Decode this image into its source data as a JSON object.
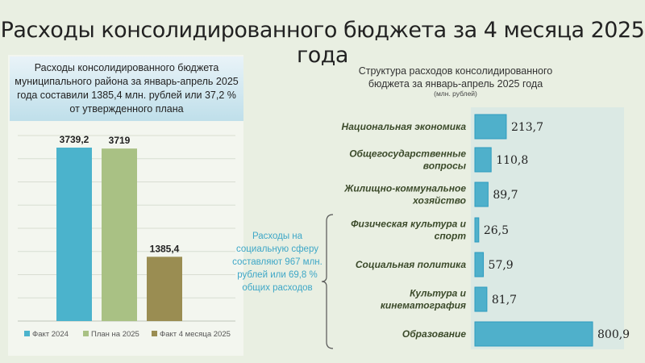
{
  "title": "Расходы консолидированного бюджета за 4 месяца 2025 года",
  "summary": "Расходы консолидированного бюджета муниципального района за январь-апрель 2025 года составили 1385,4 млн. рублей или 37,2 % от утвержденного плана",
  "side_note": "Расходы на социальную сферу составляют 967 млн. рублей или 69,8 % общих расходов",
  "colors": {
    "bar_teal": "#4bb3cc",
    "bar_green": "#a9c184",
    "bar_olive": "#9a8d52",
    "right_bar": "#4fb0cb",
    "label_color": "#3b4a2a"
  },
  "chart_data": [
    {
      "type": "bar",
      "title": "",
      "categories": [
        "Факт 2024",
        "План на 2025",
        "Факт 4 месяца 2025"
      ],
      "values": [
        3739.2,
        3719,
        1385.4
      ],
      "value_labels": [
        "3739,2",
        "3719",
        "1385,4"
      ],
      "legend": [
        "Факт 2024",
        "План на 2025",
        "Факт 4 месяца 2025"
      ],
      "legend_position": "bottom",
      "ylim": [
        0,
        4000
      ],
      "grid": true
    },
    {
      "type": "bar",
      "orientation": "horizontal",
      "title": "Структура расходов консолидированного бюджета за январь-апрель 2025 года",
      "subtitle": "(млн. рублей)",
      "categories": [
        "Национальная экономика",
        "Общегосударственные вопросы",
        "Жилищно-коммунальное хозяйство",
        "Физическая культура и спорт",
        "Социальная политика",
        "Культура и кинематография",
        "Образование"
      ],
      "values": [
        213.7,
        110.8,
        89.7,
        26.5,
        57.9,
        81.7,
        800.9
      ],
      "value_labels": [
        "213,7",
        "110,8",
        "89,7",
        "26,5",
        "57,9",
        "81,7",
        "800,9"
      ],
      "xlim": [
        0,
        850
      ]
    }
  ]
}
